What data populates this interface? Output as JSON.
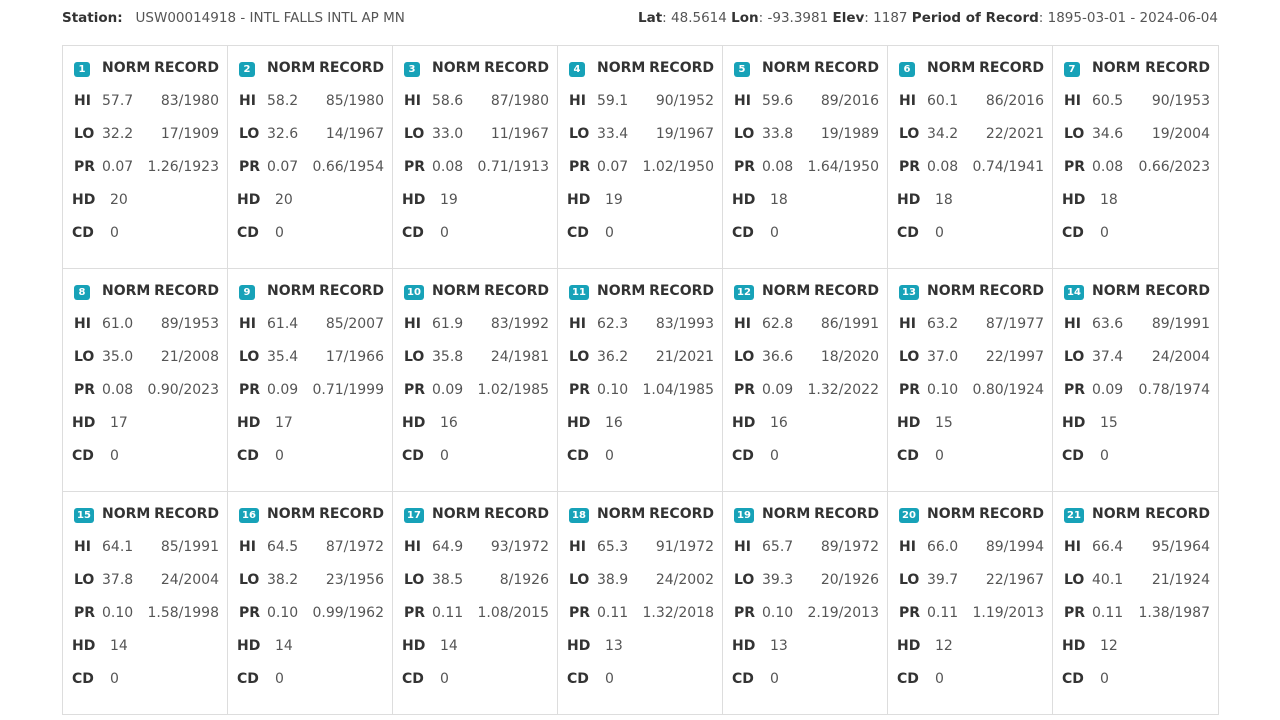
{
  "station": {
    "label": "Station:",
    "value": "USW00014918 - INTL FALLS INTL AP MN",
    "lat_label": "Lat",
    "lat": "48.5614",
    "lon_label": "Lon",
    "lon": "-93.3981",
    "elev_label": "Elev",
    "elev": "1187",
    "por_label": "Period of Record",
    "por": "1895-03-01 - 2024-06-04"
  },
  "labels": {
    "norm": "NORM",
    "record": "RECORD",
    "hi": "HI",
    "lo": "LO",
    "pr": "PR",
    "hd": "HD",
    "cd": "CD"
  },
  "days": [
    {
      "day": "1",
      "hi": "57.7",
      "hi_rec": "83/1980",
      "lo": "32.2",
      "lo_rec": "17/1909",
      "pr": "0.07",
      "pr_rec": "1.26/1923",
      "hd": "20",
      "cd": "0"
    },
    {
      "day": "2",
      "hi": "58.2",
      "hi_rec": "85/1980",
      "lo": "32.6",
      "lo_rec": "14/1967",
      "pr": "0.07",
      "pr_rec": "0.66/1954",
      "hd": "20",
      "cd": "0"
    },
    {
      "day": "3",
      "hi": "58.6",
      "hi_rec": "87/1980",
      "lo": "33.0",
      "lo_rec": "11/1967",
      "pr": "0.08",
      "pr_rec": "0.71/1913",
      "hd": "19",
      "cd": "0"
    },
    {
      "day": "4",
      "hi": "59.1",
      "hi_rec": "90/1952",
      "lo": "33.4",
      "lo_rec": "19/1967",
      "pr": "0.07",
      "pr_rec": "1.02/1950",
      "hd": "19",
      "cd": "0"
    },
    {
      "day": "5",
      "hi": "59.6",
      "hi_rec": "89/2016",
      "lo": "33.8",
      "lo_rec": "19/1989",
      "pr": "0.08",
      "pr_rec": "1.64/1950",
      "hd": "18",
      "cd": "0"
    },
    {
      "day": "6",
      "hi": "60.1",
      "hi_rec": "86/2016",
      "lo": "34.2",
      "lo_rec": "22/2021",
      "pr": "0.08",
      "pr_rec": "0.74/1941",
      "hd": "18",
      "cd": "0"
    },
    {
      "day": "7",
      "hi": "60.5",
      "hi_rec": "90/1953",
      "lo": "34.6",
      "lo_rec": "19/2004",
      "pr": "0.08",
      "pr_rec": "0.66/2023",
      "hd": "18",
      "cd": "0"
    },
    {
      "day": "8",
      "hi": "61.0",
      "hi_rec": "89/1953",
      "lo": "35.0",
      "lo_rec": "21/2008",
      "pr": "0.08",
      "pr_rec": "0.90/2023",
      "hd": "17",
      "cd": "0"
    },
    {
      "day": "9",
      "hi": "61.4",
      "hi_rec": "85/2007",
      "lo": "35.4",
      "lo_rec": "17/1966",
      "pr": "0.09",
      "pr_rec": "0.71/1999",
      "hd": "17",
      "cd": "0"
    },
    {
      "day": "10",
      "hi": "61.9",
      "hi_rec": "83/1992",
      "lo": "35.8",
      "lo_rec": "24/1981",
      "pr": "0.09",
      "pr_rec": "1.02/1985",
      "hd": "16",
      "cd": "0"
    },
    {
      "day": "11",
      "hi": "62.3",
      "hi_rec": "83/1993",
      "lo": "36.2",
      "lo_rec": "21/2021",
      "pr": "0.10",
      "pr_rec": "1.04/1985",
      "hd": "16",
      "cd": "0"
    },
    {
      "day": "12",
      "hi": "62.8",
      "hi_rec": "86/1991",
      "lo": "36.6",
      "lo_rec": "18/2020",
      "pr": "0.09",
      "pr_rec": "1.32/2022",
      "hd": "16",
      "cd": "0"
    },
    {
      "day": "13",
      "hi": "63.2",
      "hi_rec": "87/1977",
      "lo": "37.0",
      "lo_rec": "22/1997",
      "pr": "0.10",
      "pr_rec": "0.80/1924",
      "hd": "15",
      "cd": "0"
    },
    {
      "day": "14",
      "hi": "63.6",
      "hi_rec": "89/1991",
      "lo": "37.4",
      "lo_rec": "24/2004",
      "pr": "0.09",
      "pr_rec": "0.78/1974",
      "hd": "15",
      "cd": "0"
    },
    {
      "day": "15",
      "hi": "64.1",
      "hi_rec": "85/1991",
      "lo": "37.8",
      "lo_rec": "24/2004",
      "pr": "0.10",
      "pr_rec": "1.58/1998",
      "hd": "14",
      "cd": "0"
    },
    {
      "day": "16",
      "hi": "64.5",
      "hi_rec": "87/1972",
      "lo": "38.2",
      "lo_rec": "23/1956",
      "pr": "0.10",
      "pr_rec": "0.99/1962",
      "hd": "14",
      "cd": "0"
    },
    {
      "day": "17",
      "hi": "64.9",
      "hi_rec": "93/1972",
      "lo": "38.5",
      "lo_rec": "8/1926",
      "pr": "0.11",
      "pr_rec": "1.08/2015",
      "hd": "14",
      "cd": "0"
    },
    {
      "day": "18",
      "hi": "65.3",
      "hi_rec": "91/1972",
      "lo": "38.9",
      "lo_rec": "24/2002",
      "pr": "0.11",
      "pr_rec": "1.32/2018",
      "hd": "13",
      "cd": "0"
    },
    {
      "day": "19",
      "hi": "65.7",
      "hi_rec": "89/1972",
      "lo": "39.3",
      "lo_rec": "20/1926",
      "pr": "0.10",
      "pr_rec": "2.19/2013",
      "hd": "13",
      "cd": "0"
    },
    {
      "day": "20",
      "hi": "66.0",
      "hi_rec": "89/1994",
      "lo": "39.7",
      "lo_rec": "22/1967",
      "pr": "0.11",
      "pr_rec": "1.19/2013",
      "hd": "12",
      "cd": "0"
    },
    {
      "day": "21",
      "hi": "66.4",
      "hi_rec": "95/1964",
      "lo": "40.1",
      "lo_rec": "21/1924",
      "pr": "0.11",
      "pr_rec": "1.38/1987",
      "hd": "12",
      "cd": "0"
    }
  ]
}
